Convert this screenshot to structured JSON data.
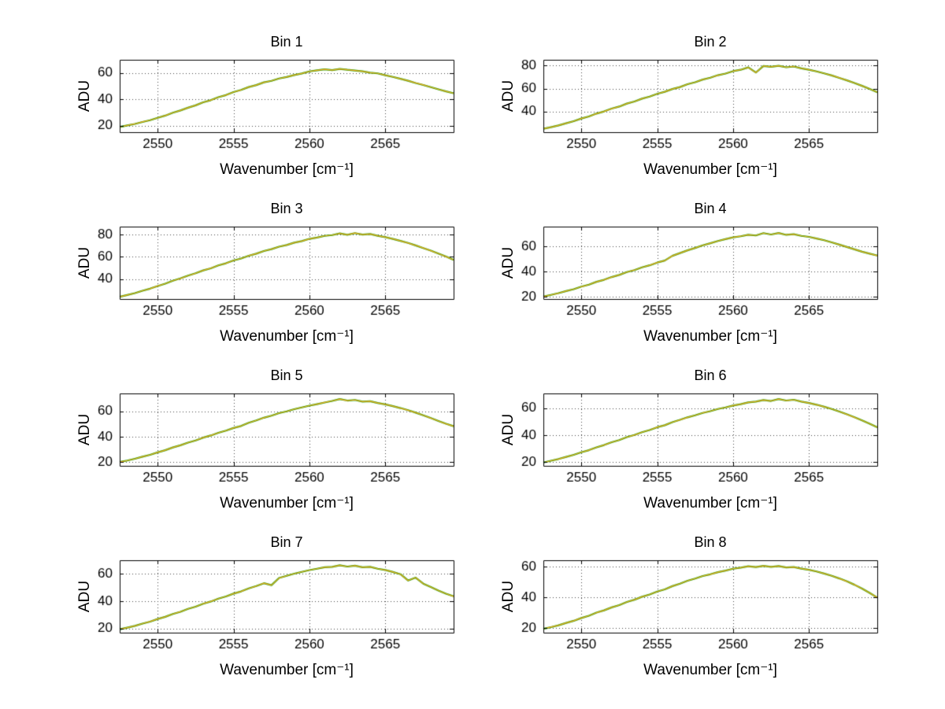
{
  "colors": {
    "background": "#ffffff",
    "axis": "#000000",
    "grid": "#444444",
    "trace_green": "#00a000",
    "trace_orange": "#ffa520"
  },
  "chart_data": {
    "type": "line",
    "title": "",
    "xlabel": "Wavenumber [cm⁻¹]",
    "ylabel": "ADU",
    "xlim": [
      2547.5,
      2569.5
    ],
    "xticks": [
      2550,
      2555,
      2560,
      2565
    ],
    "grid": "dotted",
    "legend": "none",
    "x": [
      2547.5,
      2548,
      2548.5,
      2549,
      2549.5,
      2550,
      2550.5,
      2551,
      2551.5,
      2552,
      2552.5,
      2553,
      2553.5,
      2554,
      2554.5,
      2555,
      2555.5,
      2556,
      2556.5,
      2557,
      2557.5,
      2558,
      2558.5,
      2559,
      2559.5,
      2560,
      2560.5,
      2561,
      2561.5,
      2562,
      2562.5,
      2563,
      2563.5,
      2564,
      2564.5,
      2565,
      2565.5,
      2566,
      2566.5,
      2567,
      2567.5,
      2568,
      2568.5,
      2569,
      2569.5
    ],
    "bins": [
      {
        "title": "Bin 1",
        "ylim": [
          15,
          70
        ],
        "yticks": [
          20,
          40,
          60
        ],
        "series": [
          {
            "name": "trace-green",
            "color": "#00a000"
          },
          {
            "name": "trace-orange",
            "color": "#ffa520"
          }
        ],
        "values": [
          19.0,
          20.2,
          21.3,
          22.8,
          24.1,
          25.9,
          27.6,
          29.8,
          31.5,
          33.6,
          35.4,
          37.7,
          39.3,
          41.6,
          43.2,
          45.5,
          47.1,
          49.3,
          50.8,
          52.9,
          54.0,
          55.8,
          56.9,
          58.4,
          59.6,
          61.2,
          62.0,
          62.8,
          62.2,
          63.1,
          62.4,
          61.9,
          61.3,
          60.2,
          59.7,
          58.3,
          57.0,
          55.6,
          54.1,
          52.4,
          50.9,
          49.2,
          47.6,
          46.0,
          44.6
        ]
      },
      {
        "title": "Bin 2",
        "ylim": [
          22,
          85
        ],
        "yticks": [
          40,
          60,
          80
        ],
        "series": [
          {
            "name": "trace-green",
            "color": "#00a000"
          },
          {
            "name": "trace-orange",
            "color": "#ffa520"
          }
        ],
        "values": [
          25.0,
          26.4,
          27.9,
          29.8,
          31.6,
          33.9,
          35.7,
          38.2,
          40.1,
          42.5,
          44.3,
          46.9,
          48.7,
          51.2,
          53.0,
          55.4,
          57.2,
          59.6,
          61.3,
          63.8,
          65.5,
          67.8,
          69.4,
          71.6,
          73.0,
          75.1,
          76.3,
          78.4,
          73.9,
          79.6,
          78.9,
          79.8,
          78.5,
          79.2,
          77.6,
          76.4,
          74.9,
          73.2,
          71.4,
          69.3,
          67.1,
          64.8,
          62.3,
          59.7,
          56.8
        ]
      },
      {
        "title": "Bin 3",
        "ylim": [
          22,
          87
        ],
        "yticks": [
          40,
          60,
          80
        ],
        "series": [
          {
            "name": "trace-green",
            "color": "#00a000"
          },
          {
            "name": "trace-orange",
            "color": "#ffa520"
          }
        ],
        "values": [
          24.0,
          25.6,
          27.3,
          29.4,
          31.3,
          33.7,
          35.8,
          38.4,
          40.5,
          43.0,
          45.1,
          47.7,
          49.6,
          52.2,
          54.1,
          56.6,
          58.4,
          60.9,
          62.7,
          65.1,
          66.8,
          69.0,
          70.5,
          72.6,
          74.0,
          76.0,
          77.2,
          78.7,
          79.4,
          80.9,
          79.7,
          81.2,
          79.9,
          80.4,
          78.8,
          77.5,
          76.0,
          74.2,
          72.3,
          70.1,
          67.8,
          65.4,
          62.8,
          60.1,
          57.2
        ]
      },
      {
        "title": "Bin 4",
        "ylim": [
          18,
          76
        ],
        "yticks": [
          20,
          40,
          60
        ],
        "series": [
          {
            "name": "trace-green",
            "color": "#00a000"
          },
          {
            "name": "trace-orange",
            "color": "#ffa520"
          }
        ],
        "values": [
          20.0,
          21.3,
          22.7,
          24.4,
          25.9,
          27.9,
          29.5,
          31.8,
          33.4,
          35.6,
          37.3,
          39.6,
          41.2,
          43.4,
          45.0,
          47.2,
          48.8,
          52.6,
          54.8,
          57.0,
          58.9,
          61.0,
          62.7,
          64.5,
          66.0,
          67.4,
          68.3,
          69.5,
          68.9,
          70.8,
          69.7,
          70.9,
          69.4,
          69.9,
          68.6,
          67.8,
          66.5,
          65.1,
          63.4,
          61.6,
          59.7,
          57.8,
          55.9,
          54.3,
          52.8
        ]
      },
      {
        "title": "Bin 5",
        "ylim": [
          17,
          74
        ],
        "yticks": [
          20,
          40,
          60
        ],
        "series": [
          {
            "name": "trace-green",
            "color": "#00a000"
          },
          {
            "name": "trace-orange",
            "color": "#ffa520"
          }
        ],
        "values": [
          20.0,
          21.2,
          22.6,
          24.2,
          25.7,
          27.6,
          29.3,
          31.5,
          33.2,
          35.3,
          37.0,
          39.2,
          40.9,
          43.0,
          44.7,
          46.8,
          48.4,
          50.9,
          52.8,
          54.9,
          56.5,
          58.5,
          59.9,
          61.6,
          63.0,
          64.4,
          65.6,
          66.9,
          68.1,
          69.6,
          68.4,
          68.9,
          67.6,
          67.9,
          66.5,
          65.4,
          64.0,
          62.5,
          60.8,
          58.9,
          56.8,
          54.6,
          52.3,
          50.1,
          48.2
        ]
      },
      {
        "title": "Bin 6",
        "ylim": [
          17,
          71
        ],
        "yticks": [
          20,
          40,
          60
        ],
        "series": [
          {
            "name": "trace-green",
            "color": "#00a000"
          },
          {
            "name": "trace-orange",
            "color": "#ffa520"
          }
        ],
        "values": [
          19.5,
          20.8,
          22.1,
          23.7,
          25.2,
          27.1,
          28.7,
          30.8,
          32.5,
          34.6,
          36.2,
          38.4,
          40.0,
          42.1,
          43.7,
          45.8,
          47.3,
          49.6,
          51.3,
          53.2,
          54.7,
          56.5,
          57.8,
          59.4,
          60.6,
          62.0,
          63.0,
          64.3,
          64.9,
          66.1,
          65.4,
          66.8,
          65.7,
          66.3,
          64.9,
          63.9,
          62.6,
          61.1,
          59.4,
          57.5,
          55.4,
          53.2,
          50.9,
          48.4,
          45.8
        ]
      },
      {
        "title": "Bin 7",
        "ylim": [
          17,
          70
        ],
        "yticks": [
          20,
          40,
          60
        ],
        "series": [
          {
            "name": "trace-green",
            "color": "#00a000"
          },
          {
            "name": "trace-orange",
            "color": "#ffa520"
          }
        ],
        "values": [
          19.5,
          20.7,
          22.0,
          23.6,
          25.1,
          27.0,
          28.6,
          30.7,
          32.3,
          34.4,
          36.0,
          38.2,
          39.8,
          41.9,
          43.5,
          45.6,
          47.2,
          49.4,
          51.1,
          53.2,
          51.8,
          57.0,
          58.6,
          60.2,
          61.5,
          62.8,
          63.8,
          64.9,
          65.2,
          66.3,
          65.4,
          66.0,
          64.9,
          65.2,
          63.8,
          62.9,
          61.4,
          59.8,
          55.2,
          57.3,
          52.9,
          50.4,
          47.8,
          45.5,
          43.6
        ]
      },
      {
        "title": "Bin 8",
        "ylim": [
          17,
          64
        ],
        "yticks": [
          20,
          40,
          60
        ],
        "series": [
          {
            "name": "trace-green",
            "color": "#00a000"
          },
          {
            "name": "trace-orange",
            "color": "#ffa520"
          }
        ],
        "values": [
          19.5,
          20.6,
          21.8,
          23.3,
          24.7,
          26.5,
          28.0,
          30.0,
          31.5,
          33.4,
          34.9,
          36.9,
          38.4,
          40.3,
          41.8,
          43.7,
          45.1,
          47.2,
          48.8,
          50.7,
          52.1,
          53.8,
          54.9,
          56.3,
          57.3,
          58.5,
          59.2,
          60.1,
          59.6,
          60.4,
          59.7,
          60.2,
          59.3,
          59.6,
          58.6,
          57.8,
          56.7,
          55.4,
          53.9,
          52.2,
          50.3,
          48.1,
          45.6,
          42.8,
          39.8
        ]
      }
    ]
  }
}
